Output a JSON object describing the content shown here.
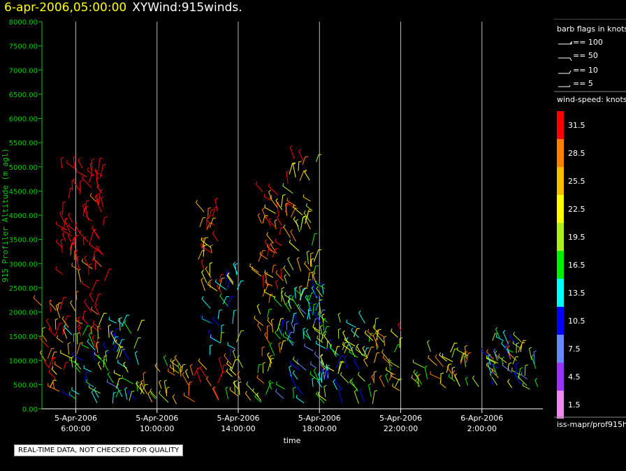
{
  "header": {
    "date_label": "6-apr-2006,05:00:00",
    "title": "XYWind:915winds."
  },
  "quality_note": "REAL-TIME DATA, NOT CHECKED FOR QUALITY",
  "source_label": "iss-mapr/prof915h",
  "colors": {
    "axis": "#00cc00",
    "grid": "#bbbbbb",
    "header_date": "#ffff00"
  },
  "chart_data": {
    "type": "scatter",
    "title": "XYWind:915winds.",
    "xlabel": "time",
    "ylabel": "915 Profiler Altitude (m agl)",
    "ylim": [
      0,
      8000
    ],
    "xlim": [
      "2006-04-05T04:20:00",
      "2006-04-06T05:00:00"
    ],
    "grid": "vertical",
    "y_ticks": [
      "0.00",
      "500.00",
      "1000.00",
      "1500.00",
      "2000.00",
      "2500.00",
      "3000.00",
      "3500.00",
      "4000.00",
      "4500.00",
      "5000.00",
      "5500.00",
      "6000.00",
      "6500.00",
      "7000.00",
      "7500.00",
      "8000.00"
    ],
    "x_ticks": [
      {
        "time": "2006-04-05T06:00:00",
        "date": "5-Apr-2006",
        "clock": "6:00:00"
      },
      {
        "time": "2006-04-05T10:00:00",
        "date": "5-Apr-2006",
        "clock": "10:00:00"
      },
      {
        "time": "2006-04-05T14:00:00",
        "date": "5-Apr-2006",
        "clock": "14:00:00"
      },
      {
        "time": "2006-04-05T18:00:00",
        "date": "5-Apr-2006",
        "clock": "18:00:00"
      },
      {
        "time": "2006-04-05T22:00:00",
        "date": "5-Apr-2006",
        "clock": "22:00:00"
      },
      {
        "time": "2006-04-06T02:00:00",
        "date": "6-Apr-2006",
        "clock": "2:00:00"
      }
    ],
    "barb_legend": {
      "title": "barb flags in knots",
      "entries": [
        "== 100",
        "== 50",
        "== 10",
        "== 5"
      ]
    },
    "colorbar": {
      "title": "wind-speed: knots",
      "levels": [
        {
          "label": "31.5",
          "color": "#ff0000"
        },
        {
          "label": "28.5",
          "color": "#ff8000"
        },
        {
          "label": "25.5",
          "color": "#ffbb00"
        },
        {
          "label": "22.5",
          "color": "#ffff00"
        },
        {
          "label": "19.5",
          "color": "#aaee22"
        },
        {
          "label": "16.5",
          "color": "#00ee00"
        },
        {
          "label": "13.5",
          "color": "#00ffff"
        },
        {
          "label": "10.5",
          "color": "#0000ff"
        },
        {
          "label": "7.5",
          "color": "#6688ff"
        },
        {
          "label": "4.5",
          "color": "#9933ff"
        },
        {
          "label": "1.5",
          "color": "#ee88ee"
        }
      ]
    }
  }
}
